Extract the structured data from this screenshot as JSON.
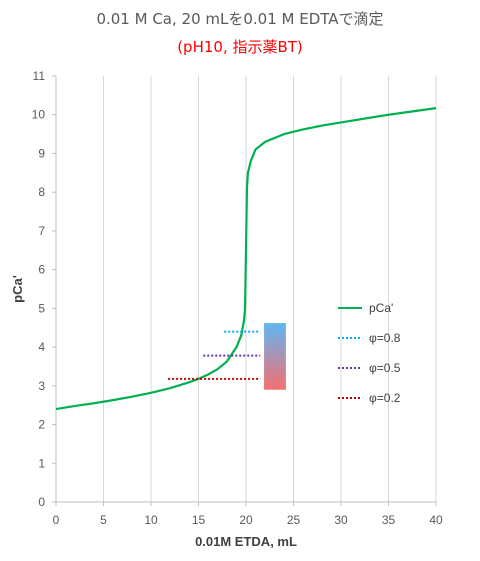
{
  "chart_data": {
    "type": "line",
    "title": "0.01 M Ca, 20 mLを0.01 M EDTAで滴定",
    "subtitle": "(pH10, 指示薬BT)",
    "xlabel": "0.01M ETDA, mL",
    "ylabel": "pCa'",
    "xlim": [
      0,
      40
    ],
    "ylim": [
      0,
      11
    ],
    "xticks": [
      0,
      5,
      10,
      15,
      20,
      25,
      30,
      35,
      40
    ],
    "yticks": [
      0,
      1,
      2,
      3,
      4,
      5,
      6,
      7,
      8,
      9,
      10,
      11
    ],
    "grid": "vertical",
    "legend_position": "right",
    "series": [
      {
        "name": "pCa'",
        "color": "#00b050",
        "x": [
          0,
          2,
          4,
          6,
          8,
          10,
          12,
          14,
          15,
          16,
          17,
          18,
          19,
          19.5,
          19.8,
          19.9,
          20,
          20.1,
          20.2,
          20.5,
          21,
          22,
          24,
          26,
          28,
          30,
          35,
          40
        ],
        "y": [
          2.4,
          2.48,
          2.55,
          2.63,
          2.72,
          2.82,
          2.94,
          3.09,
          3.18,
          3.29,
          3.43,
          3.63,
          4.0,
          4.3,
          4.7,
          5.0,
          6.5,
          8.1,
          8.5,
          8.8,
          9.1,
          9.3,
          9.5,
          9.62,
          9.72,
          9.8,
          10.0,
          10.17
        ]
      },
      {
        "name": "φ=0.8",
        "color": "#00b0f0",
        "style": "dotted",
        "x": [
          17.7,
          21.5
        ],
        "y": [
          4.4,
          4.4
        ]
      },
      {
        "name": "φ=0.5",
        "color": "#7030a0",
        "style": "dotted",
        "x": [
          15.5,
          21.5
        ],
        "y": [
          3.78,
          3.78
        ]
      },
      {
        "name": "φ=0.2",
        "color": "#c00000",
        "style": "dotted",
        "x": [
          11.8,
          21.5
        ],
        "y": [
          3.18,
          3.18
        ]
      }
    ],
    "indicator_range": {
      "x": [
        21.9,
        24.2
      ],
      "y_low": 2.9,
      "y_high": 4.62,
      "color_top": "#5fb7f2",
      "color_bottom": "#f56f6f"
    }
  }
}
